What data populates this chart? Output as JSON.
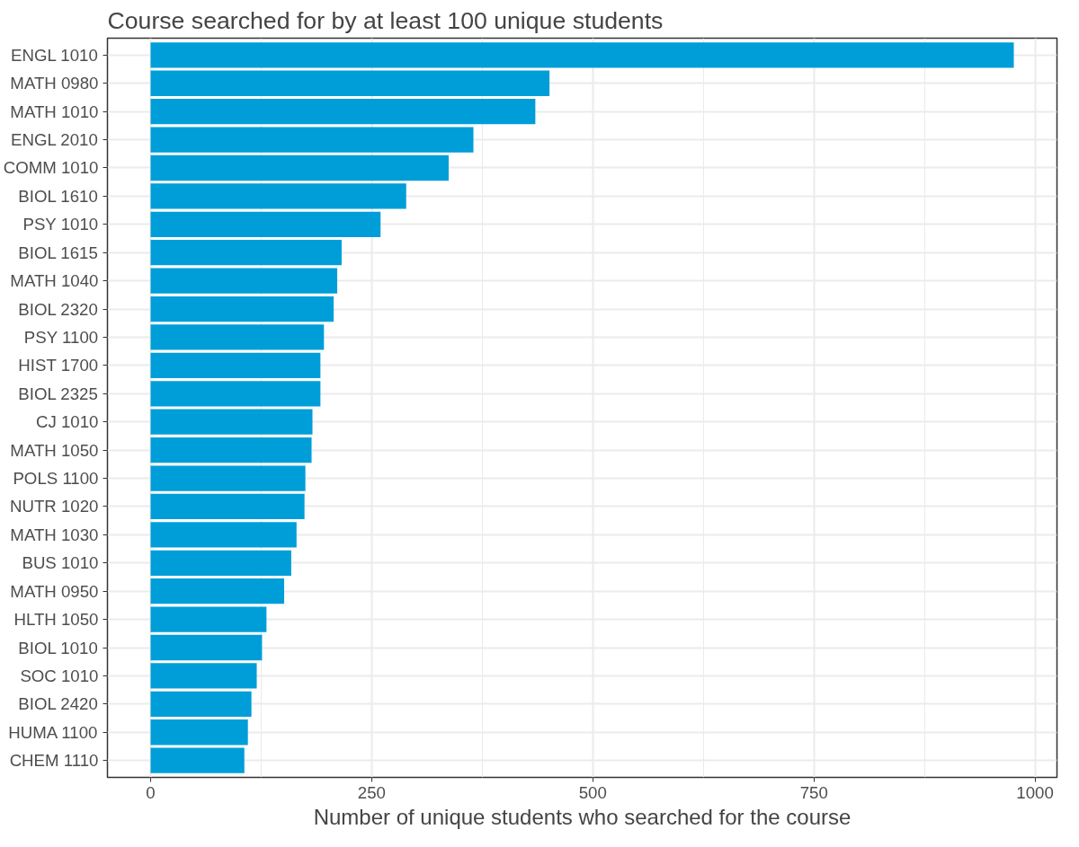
{
  "chart_data": {
    "type": "bar",
    "orientation": "horizontal",
    "title": "Course searched for by at least 100 unique students",
    "xlabel": "Number of unique students who searched for the course",
    "categories": [
      "ENGL 1010",
      "MATH 0980",
      "MATH 1010",
      "ENGL 2010",
      "COMM 1010",
      "BIOL 1610",
      "PSY 1010",
      "BIOL 1615",
      "MATH 1040",
      "BIOL 2320",
      "PSY 1100",
      "HIST 1700",
      "BIOL 2325",
      "CJ 1010",
      "MATH 1050",
      "POLS 1100",
      "NUTR 1020",
      "MATH 1030",
      "BUS 1010",
      "MATH 0950",
      "HLTH 1050",
      "BIOL 1010",
      "SOC 1010",
      "BIOL 2420",
      "HUMA 1100",
      "CHEM 1110"
    ],
    "values": [
      976,
      451,
      435,
      365,
      337,
      289,
      260,
      216,
      211,
      207,
      196,
      192,
      192,
      183,
      182,
      175,
      174,
      165,
      159,
      151,
      131,
      126,
      120,
      114,
      110,
      106
    ],
    "color": "#009ed8",
    "xlim": [
      -48.8,
      1024.8
    ],
    "xticks": [
      0,
      250,
      500,
      750,
      1000
    ],
    "grid": true
  }
}
